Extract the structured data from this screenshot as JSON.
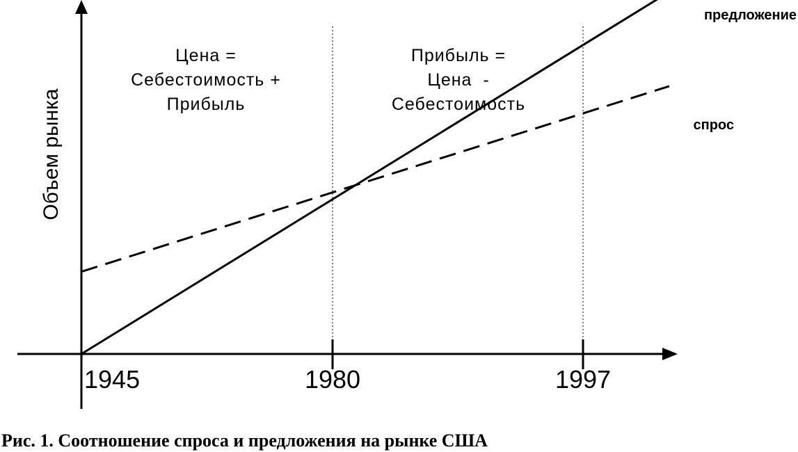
{
  "chart_data": {
    "type": "line",
    "ylabel": "Объем рынка",
    "xlabel": "",
    "x_ticks": [
      "1945",
      "1980",
      "1997"
    ],
    "xlim": [
      1945,
      1997
    ],
    "series": [
      {
        "name": "предложение",
        "style": "solid",
        "points": [
          [
            1945,
            0
          ],
          [
            1980,
            1
          ],
          [
            1997,
            1.62
          ]
        ]
      },
      {
        "name": "спрос",
        "style": "dashed",
        "points": [
          [
            1945,
            0.58
          ],
          [
            1980,
            1
          ],
          [
            1997,
            1.41
          ]
        ]
      }
    ],
    "region_labels": [
      {
        "lines": [
          "Цена =",
          "Себестоимость +",
          "Прибыль"
        ]
      },
      {
        "lines": [
          "Прибыль =",
          "Цена  -",
          "Себестоимость"
        ]
      }
    ],
    "vertical_markers": [
      "1980",
      "1997"
    ],
    "caption": "Рис. 1. Соотношение спроса и предложения на рынке США",
    "colors": {
      "line": "#000000",
      "background": "#ffffff"
    }
  }
}
